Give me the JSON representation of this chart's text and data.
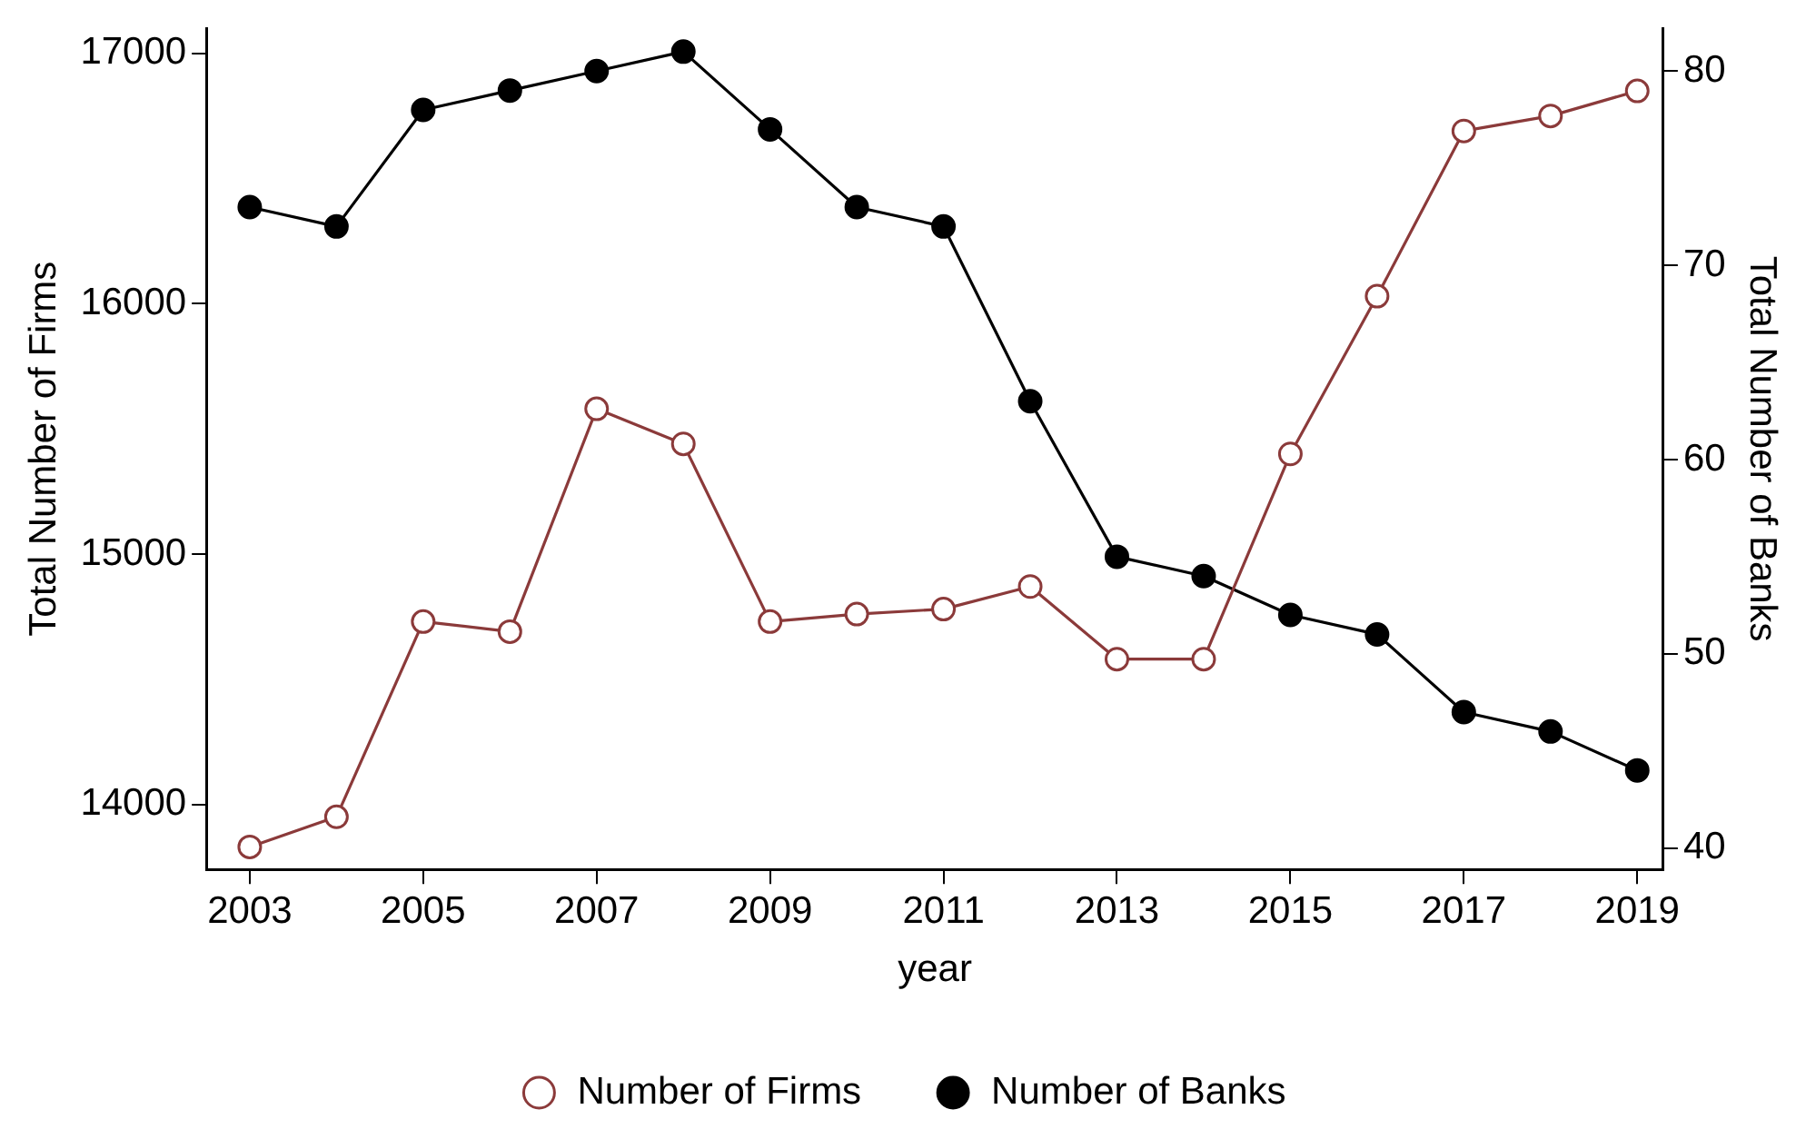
{
  "chart_data": {
    "type": "line",
    "xlabel": "year",
    "ylabel": "Total Number of Firms",
    "y2label": "Total Number of Banks",
    "x": [
      2003,
      2004,
      2005,
      2006,
      2007,
      2008,
      2009,
      2010,
      2011,
      2012,
      2013,
      2014,
      2015,
      2016,
      2017,
      2018,
      2019
    ],
    "series": [
      {
        "name": "Number of Firms",
        "color": "#8b3a3a",
        "values": [
          13830,
          13950,
          14730,
          14690,
          15580,
          15440,
          14730,
          14760,
          14780,
          14870,
          14580,
          14580,
          15400,
          16030,
          16690,
          16750,
          16850
        ]
      },
      {
        "name": "Number of Banks",
        "color": "#000000",
        "axis": "y2",
        "values": [
          73,
          72,
          78,
          79,
          80,
          81,
          77,
          73,
          72,
          63,
          55,
          54,
          52,
          51,
          47,
          46,
          44
        ]
      }
    ],
    "xlim": [
      2002.5,
      2019.3
    ],
    "xticks": [
      2003,
      2005,
      2007,
      2009,
      2011,
      2013,
      2015,
      2017,
      2019
    ],
    "ylim": [
      13740,
      17100
    ],
    "yticks": [
      14000,
      15000,
      16000,
      17000
    ],
    "y2lim": [
      38.9,
      82.2
    ],
    "y2ticks": [
      40,
      50,
      60,
      70,
      80
    ],
    "grid": false,
    "legend": "bottom",
    "marker": "circle",
    "line_style": "solid"
  }
}
